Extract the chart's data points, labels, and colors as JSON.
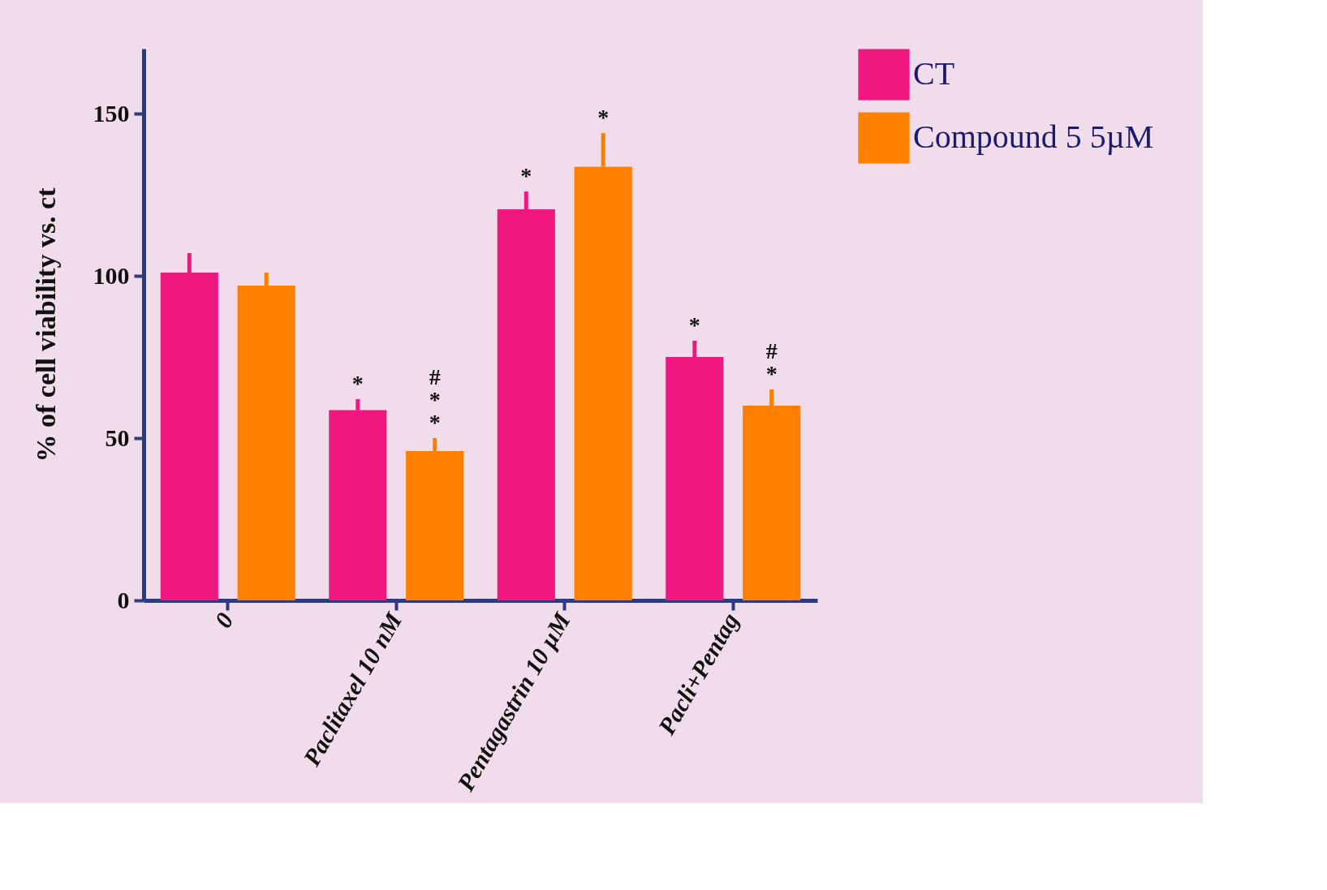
{
  "chart_data": {
    "type": "bar",
    "ylabel": "% of cell viability vs. ct",
    "categories": [
      "0",
      "Paclitaxel 10 nM",
      "Pentagastrin 10 µM",
      "Pacli+Pentag"
    ],
    "series": [
      {
        "name": "CT",
        "color": "#f0187f",
        "values": [
          101,
          58.6,
          120.5,
          75
        ],
        "errors": [
          [
            101,
            107
          ],
          [
            58.6,
            62
          ],
          [
            120.5,
            126
          ],
          [
            75,
            80
          ]
        ],
        "value_labels": [
          null,
          "*",
          "*",
          "*"
        ]
      },
      {
        "name": "Compound 5 5µM",
        "color": "#ff8000",
        "values": [
          97,
          46,
          133.6,
          60
        ],
        "errors": [
          [
            97,
            101
          ],
          [
            46,
            50
          ],
          [
            133.6,
            144
          ],
          [
            60,
            65
          ]
        ],
        "value_labels": [
          null,
          "#\n*\n*",
          "*",
          "#\n*"
        ]
      }
    ],
    "ylim": [
      0,
      170
    ],
    "yticks": [
      0,
      50,
      100,
      150
    ],
    "grid": false,
    "legend": "top right"
  }
}
